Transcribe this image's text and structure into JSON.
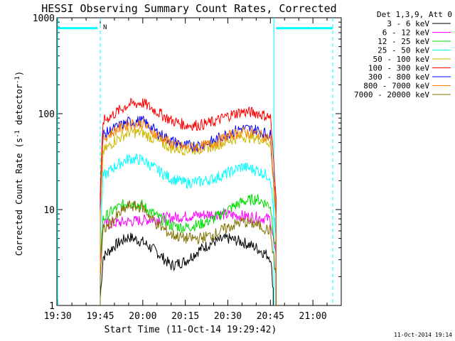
{
  "chart_data": {
    "type": "line",
    "title": "HESSI Observing Summary Count Rates, Corrected",
    "xlabel": "Start Time (11-Oct-14 19:29:42)",
    "ylabel_main": "Corrected Count Rate (s",
    "ylabel_sup1": "-1",
    "ylabel_mid": " detector",
    "ylabel_sup2": "-1",
    "ylabel_end": ")",
    "y_scale": "log",
    "ylim": [
      1,
      1000
    ],
    "xlim": [
      "19:29:42",
      "21:10:00"
    ],
    "x_ticks": [
      "19:30",
      "19:45",
      "20:00",
      "20:15",
      "20:30",
      "20:45",
      "21:00"
    ],
    "y_ticks": [
      "1",
      "10",
      "100",
      "1000"
    ],
    "legend_header": "Det 1,3,9, Att 0",
    "legend_position": "top-right",
    "series": [
      {
        "name": "3 - 6 keV",
        "color": "#000000",
        "points": [
          [
            "19:45",
            1.2
          ],
          [
            "19:46",
            3.2
          ],
          [
            "19:50",
            4.2
          ],
          [
            "19:55",
            5.2
          ],
          [
            "20:00",
            4.6
          ],
          [
            "20:05",
            3.6
          ],
          [
            "20:10",
            2.6
          ],
          [
            "20:15",
            2.9
          ],
          [
            "20:20",
            3.8
          ],
          [
            "20:25",
            4.6
          ],
          [
            "20:30",
            5.0
          ],
          [
            "20:35",
            4.6
          ],
          [
            "20:40",
            4.0
          ],
          [
            "20:45",
            3.2
          ],
          [
            "20:46",
            1.5
          ]
        ]
      },
      {
        "name": "6 - 12 keV",
        "color": "#ff00ff",
        "points": [
          [
            "19:45",
            3.0
          ],
          [
            "19:46",
            7.0
          ],
          [
            "19:55",
            7.5
          ],
          [
            "20:05",
            8.0
          ],
          [
            "20:15",
            8.5
          ],
          [
            "20:25",
            9.0
          ],
          [
            "20:35",
            8.6
          ],
          [
            "20:45",
            8.0
          ],
          [
            "20:47",
            3.0
          ]
        ]
      },
      {
        "name": "12 - 25 keV",
        "color": "#00dd00",
        "points": [
          [
            "19:45",
            3.5
          ],
          [
            "19:46",
            8.0
          ],
          [
            "19:50",
            10.0
          ],
          [
            "19:55",
            12.0
          ],
          [
            "20:00",
            11.0
          ],
          [
            "20:05",
            8.5
          ],
          [
            "20:10",
            6.8
          ],
          [
            "20:15",
            6.5
          ],
          [
            "20:20",
            7.0
          ],
          [
            "20:25",
            8.0
          ],
          [
            "20:30",
            10.0
          ],
          [
            "20:35",
            12.0
          ],
          [
            "20:40",
            13.0
          ],
          [
            "20:45",
            11.0
          ],
          [
            "20:47",
            3.5
          ]
        ]
      },
      {
        "name": "25 - 50 keV",
        "color": "#00ffff",
        "points": [
          [
            "19:45",
            5.0
          ],
          [
            "19:46",
            22.0
          ],
          [
            "19:50",
            28.0
          ],
          [
            "19:55",
            34.0
          ],
          [
            "20:00",
            33.0
          ],
          [
            "20:05",
            26.0
          ],
          [
            "20:10",
            21.0
          ],
          [
            "20:15",
            19.0
          ],
          [
            "20:20",
            19.5
          ],
          [
            "20:25",
            21.0
          ],
          [
            "20:30",
            24.0
          ],
          [
            "20:35",
            28.0
          ],
          [
            "20:40",
            26.0
          ],
          [
            "20:45",
            22.0
          ],
          [
            "20:47",
            5.0
          ]
        ]
      },
      {
        "name": "50 - 100 keV",
        "color": "#ccbb00",
        "points": [
          [
            "19:45",
            8.0
          ],
          [
            "19:46",
            40.0
          ],
          [
            "19:50",
            52.0
          ],
          [
            "19:55",
            64.0
          ],
          [
            "20:00",
            63.0
          ],
          [
            "20:05",
            52.0
          ],
          [
            "20:10",
            44.0
          ],
          [
            "20:15",
            42.0
          ],
          [
            "20:20",
            43.0
          ],
          [
            "20:25",
            46.0
          ],
          [
            "20:30",
            52.0
          ],
          [
            "20:35",
            58.0
          ],
          [
            "20:40",
            56.0
          ],
          [
            "20:45",
            50.0
          ],
          [
            "20:47",
            8.0
          ]
        ]
      },
      {
        "name": "100 - 300 keV",
        "color": "#ff0000",
        "points": [
          [
            "19:45",
            15.0
          ],
          [
            "19:46",
            84.0
          ],
          [
            "19:50",
            100.0
          ],
          [
            "19:55",
            125.0
          ],
          [
            "20:00",
            130.0
          ],
          [
            "20:05",
            105.0
          ],
          [
            "20:10",
            85.0
          ],
          [
            "20:15",
            76.0
          ],
          [
            "20:20",
            76.0
          ],
          [
            "20:25",
            82.0
          ],
          [
            "20:30",
            95.0
          ],
          [
            "20:35",
            105.0
          ],
          [
            "20:40",
            102.0
          ],
          [
            "20:45",
            92.0
          ],
          [
            "20:47",
            15.0
          ]
        ]
      },
      {
        "name": "300 - 800 keV",
        "color": "#0000ff",
        "points": [
          [
            "19:45",
            10.0
          ],
          [
            "19:46",
            60.0
          ],
          [
            "19:50",
            70.0
          ],
          [
            "19:55",
            82.0
          ],
          [
            "20:00",
            84.0
          ],
          [
            "20:05",
            64.0
          ],
          [
            "20:10",
            52.0
          ],
          [
            "20:15",
            46.0
          ],
          [
            "20:20",
            47.0
          ],
          [
            "20:25",
            52.0
          ],
          [
            "20:30",
            62.0
          ],
          [
            "20:35",
            70.0
          ],
          [
            "20:40",
            68.0
          ],
          [
            "20:45",
            60.0
          ],
          [
            "20:47",
            10.0
          ]
        ]
      },
      {
        "name": "800 - 7000 keV",
        "color": "#ff8000",
        "points": [
          [
            "19:45",
            9.0
          ],
          [
            "19:46",
            55.0
          ],
          [
            "19:50",
            66.0
          ],
          [
            "19:55",
            78.0
          ],
          [
            "20:00",
            79.0
          ],
          [
            "20:05",
            60.0
          ],
          [
            "20:10",
            49.0
          ],
          [
            "20:15",
            44.0
          ],
          [
            "20:20",
            45.0
          ],
          [
            "20:25",
            49.0
          ],
          [
            "20:30",
            58.0
          ],
          [
            "20:35",
            64.0
          ],
          [
            "20:40",
            62.0
          ],
          [
            "20:45",
            55.0
          ],
          [
            "20:47",
            9.0
          ]
        ]
      },
      {
        "name": "7000 - 20000 keV",
        "color": "#807000",
        "points": [
          [
            "19:45",
            2.0
          ],
          [
            "19:46",
            6.0
          ],
          [
            "19:50",
            8.0
          ],
          [
            "19:55",
            11.0
          ],
          [
            "20:00",
            10.5
          ],
          [
            "20:05",
            7.0
          ],
          [
            "20:10",
            5.5
          ],
          [
            "20:15",
            5.0
          ],
          [
            "20:20",
            5.0
          ],
          [
            "20:25",
            5.5
          ],
          [
            "20:30",
            6.5
          ],
          [
            "20:35",
            7.5
          ],
          [
            "20:40",
            7.0
          ],
          [
            "20:45",
            6.0
          ],
          [
            "20:47",
            2.0
          ]
        ]
      }
    ],
    "flag_bars": [
      {
        "start": "19:30",
        "end": "19:44",
        "level": 780,
        "color": "#00ffff"
      },
      {
        "start": "20:47",
        "end": "21:07",
        "level": 780,
        "color": "#00ffff"
      }
    ],
    "dashed_markers": [
      {
        "time": "19:45",
        "color": "#00ffff"
      },
      {
        "time": "21:07",
        "color": "#00ffff"
      }
    ],
    "solid_markers": [
      {
        "time": "19:29:42",
        "color": "#00ffff"
      },
      {
        "time": "20:46",
        "color": "#00ffff"
      }
    ],
    "marker_label": "N",
    "footer_timestamp": "11-Oct-2014 19:14"
  }
}
